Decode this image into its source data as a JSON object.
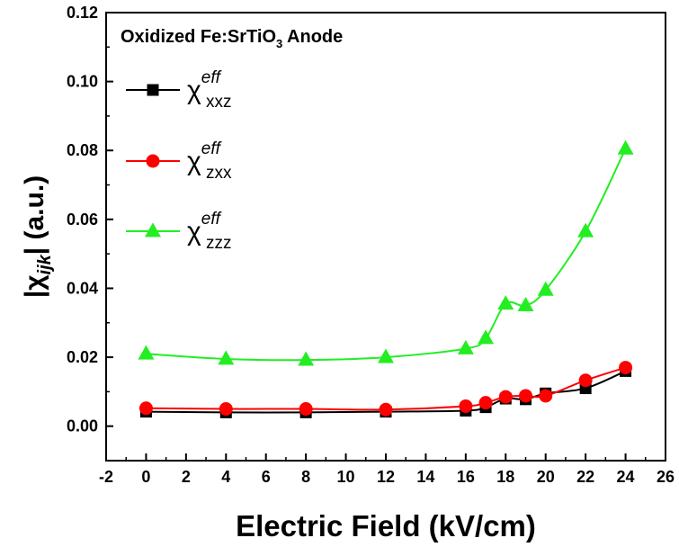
{
  "chart_data": {
    "type": "line",
    "annotation": "Oxidized Fe:SrTiO",
    "annotation_sub": "3",
    "annotation_suffix": " Anode",
    "xlabel": "Electric Field (kV/cm)",
    "ylabel": "|χ",
    "ylabel_sub": "ijk",
    "ylabel_suffix": "| (a.u.)",
    "xlim": [
      -2,
      26
    ],
    "ylim": [
      -0.01,
      0.12
    ],
    "xticks": [
      -2,
      0,
      2,
      4,
      6,
      8,
      10,
      12,
      14,
      16,
      18,
      20,
      22,
      24,
      26
    ],
    "yticks": [
      "0.00",
      "0.02",
      "0.04",
      "0.06",
      "0.08",
      "0.10",
      "0.12"
    ],
    "legend_position": "top-left",
    "grid": false,
    "series": [
      {
        "name": "χ",
        "sup": "eff",
        "sub": "xxz",
        "color": "#000000",
        "marker": "square",
        "x": [
          0,
          4,
          8,
          12,
          16,
          17,
          18,
          19,
          20,
          22,
          24
        ],
        "y": [
          0.0042,
          0.004,
          0.004,
          0.0042,
          0.0045,
          0.0055,
          0.008,
          0.0078,
          0.0095,
          0.011,
          0.016
        ]
      },
      {
        "name": "χ",
        "sup": "eff",
        "sub": "zxx",
        "color": "#ff0000",
        "marker": "circle",
        "x": [
          0,
          4,
          8,
          12,
          16,
          17,
          18,
          19,
          20,
          22,
          24
        ],
        "y": [
          0.0052,
          0.005,
          0.005,
          0.0048,
          0.0058,
          0.0068,
          0.0085,
          0.0088,
          0.0088,
          0.0133,
          0.017
        ]
      },
      {
        "name": "χ",
        "sup": "eff",
        "sub": "zzz",
        "color": "#22ee22",
        "marker": "triangle",
        "x": [
          0,
          4,
          8,
          12,
          16,
          17,
          18,
          19,
          20,
          22,
          24
        ],
        "y": [
          0.021,
          0.0195,
          0.0192,
          0.02,
          0.0225,
          0.0255,
          0.0355,
          0.035,
          0.0395,
          0.0565,
          0.0805
        ]
      }
    ]
  }
}
